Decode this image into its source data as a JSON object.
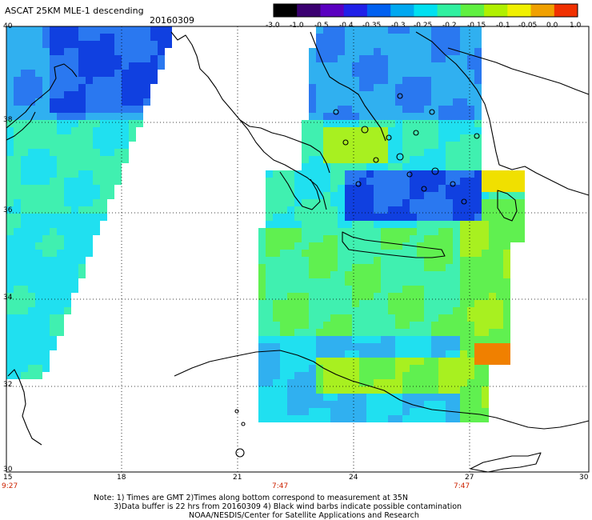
{
  "header": {
    "title": "ASCAT 25KM MLE-1 descending",
    "date": "20160309"
  },
  "colorbar": {
    "tick_labels": [
      "-3.0",
      "-1.0",
      "-0.5",
      "-0.4",
      "-0.35",
      "-0.3",
      "-0.25",
      "-0.2",
      "-0.15",
      "-0.1",
      "-0.05",
      "0.0",
      "1.0"
    ],
    "colors": [
      "#000000",
      "#3a0070",
      "#5a00c0",
      "#2020e8",
      "#0060f0",
      "#00a8f0",
      "#00e0f0",
      "#30f0a0",
      "#60f040",
      "#b0f000",
      "#f0f000",
      "#f0a000",
      "#f03000"
    ]
  },
  "map": {
    "lat_labels": [
      "40",
      "38",
      "36",
      "34",
      "32",
      "30"
    ],
    "lon_labels": [
      "15",
      "18",
      "21",
      "24",
      "27",
      "30"
    ],
    "time_labels": [
      "9:27",
      "7:47",
      "7:47"
    ],
    "field_colors": {
      "deep_blue": "#1040e0",
      "blue": "#2a78f0",
      "light_blue": "#30b0f0",
      "cyan": "#20e0f0",
      "aqua_green": "#40f0b0",
      "green": "#60f050",
      "yellow_green": "#a8f020",
      "yellow": "#f0e000",
      "orange": "#f08000"
    }
  },
  "notes": {
    "line1": "Note: 1) Times are GMT 2)Times along bottom correspond to measurement at 35N",
    "line2": "3)Data buffer is 22 hrs from 20160309 4) Black wind barbs indicate possible contamination",
    "line3": "NOAA/NESDIS/Center for Satellite Applications and Research"
  }
}
